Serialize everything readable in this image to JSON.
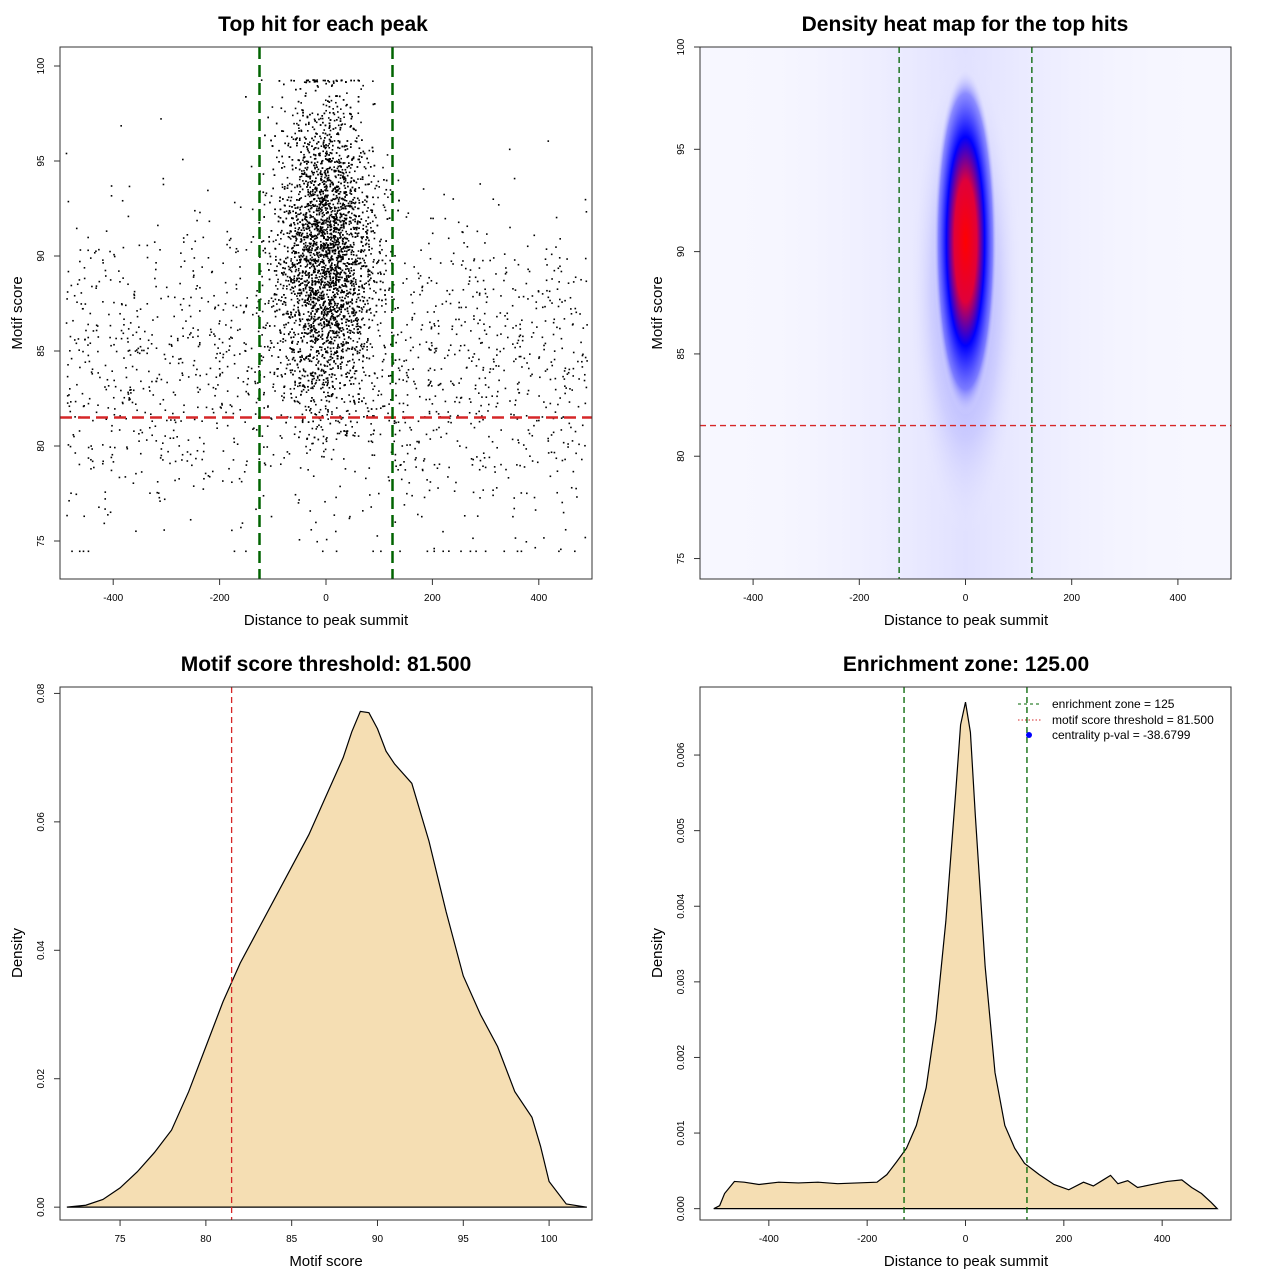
{
  "chart_data": [
    {
      "type": "scatter",
      "title": "Top hit for each peak",
      "xlabel": "Distance to peak summit",
      "ylabel": "Motif score",
      "xlim": [
        -500,
        500
      ],
      "ylim": [
        73,
        101
      ],
      "x_ticks": [
        -400,
        -200,
        0,
        200,
        400
      ],
      "y_ticks": [
        75,
        80,
        85,
        90,
        95,
        100
      ],
      "x_tick_labels": [
        "-400",
        "-200",
        "0",
        "200",
        "400"
      ],
      "y_tick_labels": [
        "75",
        "80",
        "85",
        "90",
        "95",
        "100"
      ],
      "grid": false,
      "legend": "none",
      "series": [
        {
          "role": "background points",
          "x_range": [
            -490,
            490
          ],
          "y_range": [
            74.5,
            99.5
          ],
          "approx_count": 1600
        },
        {
          "role": "central cluster",
          "x_center": 0,
          "x_spread": 45,
          "y_center": 90,
          "y_spread": 4,
          "y_range": [
            80,
            99.5
          ],
          "approx_count": 4600
        }
      ],
      "reference_lines": [
        {
          "orientation": "horizontal",
          "value": 81.5,
          "color": "#d62728",
          "style": "dashed"
        },
        {
          "orientation": "vertical",
          "value": -125,
          "color": "#006400",
          "style": "dashed"
        },
        {
          "orientation": "vertical",
          "value": 125,
          "color": "#006400",
          "style": "dashed"
        }
      ]
    },
    {
      "type": "heatmap",
      "title": "Density heat map for the top hits",
      "xlabel": "Distance to peak summit",
      "ylabel": "Motif score",
      "xlim": [
        -500,
        500
      ],
      "ylim": [
        74,
        100
      ],
      "x_ticks": [
        -400,
        -200,
        0,
        200,
        400
      ],
      "y_ticks": [
        75,
        80,
        85,
        90,
        95,
        100
      ],
      "x_tick_labels": [
        "-400",
        "-200",
        "0",
        "200",
        "400"
      ],
      "y_tick_labels": [
        "75",
        "80",
        "85",
        "90",
        "95",
        "100"
      ],
      "color_scale": [
        "#ffffff",
        "#0000ff",
        "#ff0000"
      ],
      "peak": {
        "x": 0,
        "y": 90.5
      },
      "reference_lines": [
        {
          "orientation": "horizontal",
          "value": 81.5,
          "color": "#d62728",
          "style": "dashed"
        },
        {
          "orientation": "vertical",
          "value": -125,
          "color": "#006400",
          "style": "dashed"
        },
        {
          "orientation": "vertical",
          "value": 125,
          "color": "#006400",
          "style": "dashed"
        }
      ]
    },
    {
      "type": "area",
      "title": "Motif score threshold: 81.500",
      "xlabel": "Motif score",
      "ylabel": "Density",
      "xlim": [
        71.5,
        102.5
      ],
      "ylim": [
        -0.002,
        0.081
      ],
      "x_ticks": [
        75,
        80,
        85,
        90,
        95,
        100
      ],
      "y_ticks": [
        0.0,
        0.02,
        0.04,
        0.06,
        0.08
      ],
      "x_tick_labels": [
        "75",
        "80",
        "85",
        "90",
        "95",
        "100"
      ],
      "y_tick_labels": [
        "0.00",
        "0.02",
        "0.04",
        "0.06",
        "0.08"
      ],
      "fill_color": "#f5deb3",
      "x": [
        71.9,
        73,
        74,
        75,
        76,
        77,
        78,
        79,
        80,
        81,
        82,
        83,
        84,
        85,
        86,
        87,
        88,
        88.5,
        89,
        89.5,
        90,
        90.5,
        91,
        92,
        93,
        94,
        95,
        96,
        97,
        98,
        99,
        99.5,
        100,
        101,
        102.2
      ],
      "y": [
        0.0,
        0.0003,
        0.0012,
        0.003,
        0.0055,
        0.0085,
        0.012,
        0.018,
        0.025,
        0.032,
        0.038,
        0.043,
        0.048,
        0.053,
        0.058,
        0.064,
        0.07,
        0.074,
        0.0772,
        0.077,
        0.0745,
        0.071,
        0.069,
        0.066,
        0.057,
        0.046,
        0.036,
        0.03,
        0.025,
        0.018,
        0.014,
        0.0095,
        0.004,
        0.0005,
        0.0
      ],
      "reference_lines": [
        {
          "orientation": "vertical",
          "value": 81.5,
          "color": "#d62728",
          "style": "dashed"
        }
      ]
    },
    {
      "type": "area",
      "title": "Enrichment zone: 125.00",
      "xlabel": "Distance to peak summit",
      "ylabel": "Density",
      "xlim": [
        -540,
        540
      ],
      "ylim": [
        -0.00015,
        0.0069
      ],
      "x_ticks": [
        -400,
        -200,
        0,
        200,
        400
      ],
      "y_ticks": [
        0.0,
        0.001,
        0.002,
        0.003,
        0.004,
        0.005,
        0.006
      ],
      "x_tick_labels": [
        "-400",
        "-200",
        "0",
        "200",
        "400"
      ],
      "y_tick_labels": [
        "0.000",
        "0.001",
        "0.002",
        "0.003",
        "0.004",
        "0.005",
        "0.006"
      ],
      "fill_color": "#f5deb3",
      "x": [
        -512,
        -500,
        -490,
        -470,
        -450,
        -420,
        -380,
        -340,
        -300,
        -260,
        -220,
        -180,
        -160,
        -140,
        -120,
        -100,
        -80,
        -60,
        -40,
        -20,
        -10,
        0,
        10,
        20,
        40,
        60,
        80,
        100,
        120,
        150,
        180,
        210,
        240,
        260,
        280,
        295,
        310,
        330,
        350,
        380,
        410,
        440,
        460,
        480,
        500,
        512
      ],
      "y": [
        0.0,
        4e-05,
        0.0002,
        0.00036,
        0.00035,
        0.00032,
        0.00035,
        0.00034,
        0.00035,
        0.00033,
        0.00034,
        0.00035,
        0.00045,
        0.00062,
        0.0008,
        0.0011,
        0.0016,
        0.0025,
        0.0038,
        0.0055,
        0.0064,
        0.0067,
        0.0063,
        0.0052,
        0.0032,
        0.0018,
        0.0011,
        0.0008,
        0.0006,
        0.00045,
        0.00032,
        0.00025,
        0.00035,
        0.0003,
        0.00038,
        0.00044,
        0.00033,
        0.00037,
        0.00028,
        0.00032,
        0.00036,
        0.00038,
        0.00028,
        0.0002,
        8e-05,
        0.0
      ],
      "reference_lines": [
        {
          "orientation": "vertical",
          "value": -125,
          "color": "#006400",
          "style": "dashed"
        },
        {
          "orientation": "vertical",
          "value": 125,
          "color": "#006400",
          "style": "dashed"
        }
      ],
      "legend": {
        "placement": "top-right",
        "entries": [
          {
            "label": "enrichment zone = 125",
            "color": "#006400",
            "symbol": "dashed-line"
          },
          {
            "label": "motif score threshold = 81.500",
            "color": "#d62728",
            "symbol": "dotted-line"
          },
          {
            "label": "centrality p-val = -38.6799",
            "color": "#0000ff",
            "symbol": "point"
          }
        ]
      }
    }
  ]
}
